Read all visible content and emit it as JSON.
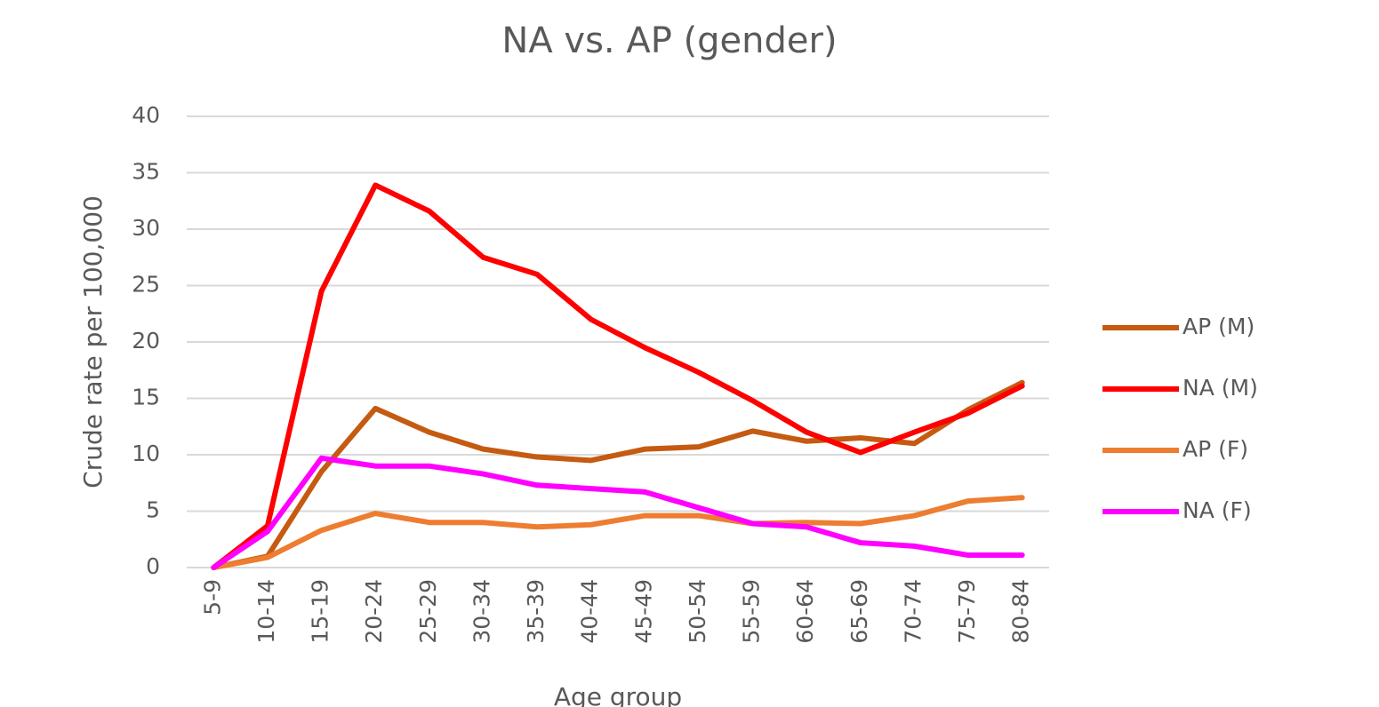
{
  "chart_data": {
    "type": "line",
    "title": "NA vs. AP (gender)",
    "x_label": "Age group",
    "y_label": "Crude rate per 100,000",
    "categories": [
      "5-9",
      "10-14",
      "15-19",
      "20-24",
      "25-29",
      "30-34",
      "35-39",
      "40-44",
      "45-49",
      "50-54",
      "55-59",
      "60-64",
      "65-69",
      "70-74",
      "75-79",
      "80-84"
    ],
    "series": [
      {
        "name": "AP (M)",
        "color": "#c55a11",
        "values": [
          0,
          1,
          8.5,
          14.1,
          12,
          10.5,
          9.8,
          9.5,
          10.5,
          10.7,
          12.1,
          11.2,
          11.5,
          11,
          14,
          16.4
        ]
      },
      {
        "name": "NA (M)",
        "color": "#ff0000",
        "values": [
          0,
          3.7,
          24.5,
          33.9,
          31.6,
          27.5,
          26,
          22,
          19.5,
          17.3,
          14.8,
          12,
          10.2,
          12,
          13.7,
          16.1
        ]
      },
      {
        "name": "AP (F)",
        "color": "#ed7d31",
        "values": [
          0,
          0.9,
          3.3,
          4.8,
          4,
          4,
          3.6,
          3.8,
          4.6,
          4.6,
          3.9,
          4,
          3.9,
          4.6,
          5.9,
          6.2
        ]
      },
      {
        "name": "NA (F)",
        "color": "#ff00ff",
        "values": [
          0,
          3.2,
          9.7,
          9,
          9,
          8.3,
          7.3,
          7,
          6.7,
          5.3,
          3.9,
          3.6,
          2.2,
          1.9,
          1.1,
          1.1
        ]
      }
    ],
    "ylim": [
      0,
      40
    ],
    "yticks": [
      0,
      5,
      10,
      15,
      20,
      25,
      30,
      35,
      40
    ],
    "grid": true,
    "legend": "right"
  }
}
